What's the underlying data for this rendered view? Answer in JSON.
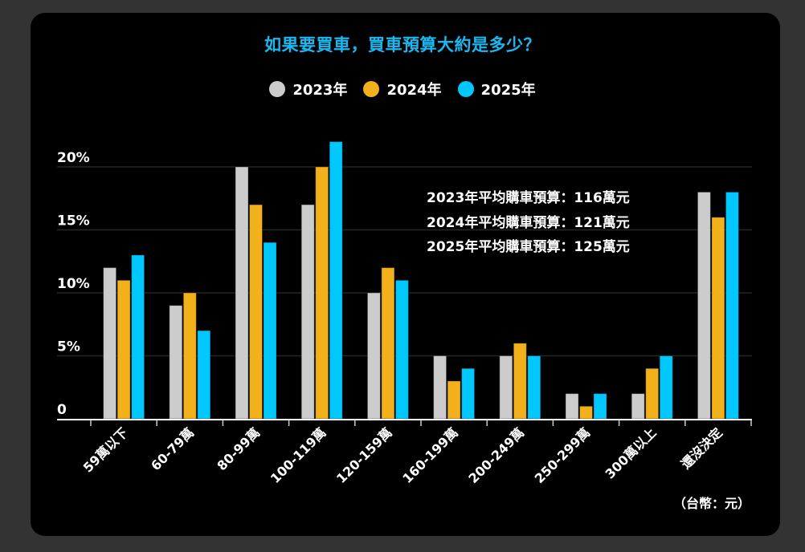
{
  "chart_data": {
    "type": "bar",
    "title": "如果要買車，買車預算大約是多少？",
    "xlabel": "",
    "ylabel": "",
    "ylim": [
      0,
      22
    ],
    "yticks": [
      0,
      5,
      10,
      15,
      20
    ],
    "ytick_labels": [
      "0",
      "5%",
      "10%",
      "15%",
      "20%"
    ],
    "grid": true,
    "legend_position": "top-center",
    "categories": [
      "59萬以下",
      "60-79萬",
      "80-99萬",
      "100-119萬",
      "120-159萬",
      "160-199萬",
      "200-249萬",
      "250-299萬",
      "300萬以上",
      "還沒決定"
    ],
    "series": [
      {
        "name": "2023年",
        "color": "#cccccc",
        "values": [
          12,
          9,
          20,
          17,
          10,
          5,
          5,
          2,
          2,
          18
        ]
      },
      {
        "name": "2024年",
        "color": "#f2b01a",
        "values": [
          11,
          10,
          17,
          20,
          12,
          3,
          6,
          1,
          4,
          16
        ]
      },
      {
        "name": "2025年",
        "color": "#00c8ff",
        "values": [
          13,
          7,
          14,
          22,
          11,
          4,
          5,
          2,
          5,
          18
        ]
      }
    ],
    "annotations": [
      "2023年平均購車預算：116萬元",
      "2024年平均購車預算：121萬元",
      "2025年平均購車預算：125萬元"
    ],
    "unit_note": "（台幣：元）"
  },
  "colors": {
    "title": "#1ab8f0",
    "background": "#000000",
    "page": "#333333"
  }
}
